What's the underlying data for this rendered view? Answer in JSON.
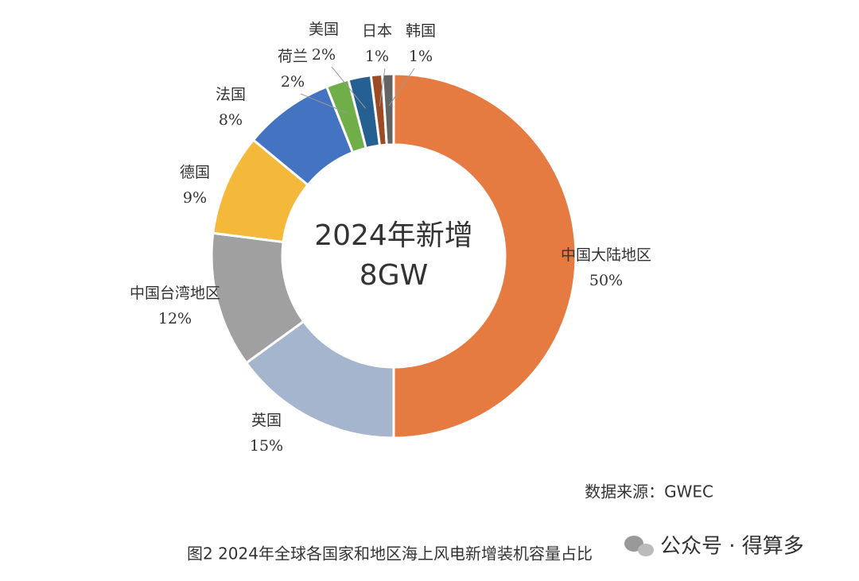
{
  "chart_data": {
    "type": "donut",
    "center_title": "2024年新增",
    "center_value": "8GW",
    "labels": [
      "中国大陆地区",
      "英国",
      "中国台湾地区",
      "德国",
      "法国",
      "荷兰",
      "美国",
      "日本",
      "韩国"
    ],
    "values": [
      50,
      15,
      12,
      9,
      8,
      2,
      2,
      1,
      1
    ],
    "value_labels": [
      "50%",
      "15%",
      "12%",
      "9%",
      "8%",
      "2%",
      "2%",
      "1%",
      "1%"
    ],
    "colors": [
      "#e57b40",
      "#a4b5cd",
      "#a0a0a0",
      "#f4b83b",
      "#4473c2",
      "#6fae48",
      "#265f92",
      "#9d4a26",
      "#646464"
    ],
    "source": "数据来源：GWEC",
    "caption": "图2  2024年全球各国家和地区海上风电新增装机容量占比"
  },
  "watermark": "公众号 · 得算多"
}
